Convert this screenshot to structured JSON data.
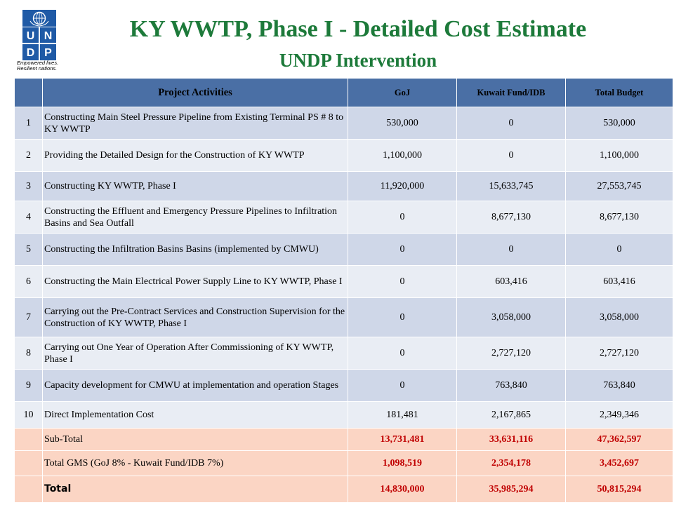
{
  "header": {
    "title": "KY WWTP, Phase I - Detailed Cost Estimate",
    "subtitle": "UNDP Intervention",
    "logo_letters": [
      "U",
      "N",
      "D",
      "P"
    ],
    "tagline_line1": "Empowered lives.",
    "tagline_line2": "Resilient nations."
  },
  "colors": {
    "title_green": "#1d7a3a",
    "header_blue": "#4a6fa5",
    "row_dark": "#cfd7e8",
    "row_light": "#e9edf4",
    "summary_bg": "#fbd5c4",
    "summary_text": "#c00000",
    "logo_blue": "#1f5aa6"
  },
  "table": {
    "columns": [
      "Project Activities",
      "GoJ",
      "Kuwait Fund/IDB",
      "Total Budget"
    ],
    "rows": [
      {
        "no": "1",
        "activity": "Constructing Main Steel Pressure Pipeline from Existing Terminal PS # 8 to KY WWTP",
        "goj": "530,000",
        "kuwait": "0",
        "total": "530,000"
      },
      {
        "no": "2",
        "activity": "Providing the Detailed Design for the Construction of KY WWTP",
        "goj": "1,100,000",
        "kuwait": "0",
        "total": "1,100,000"
      },
      {
        "no": "3",
        "activity": "Constructing KY WWTP, Phase I",
        "goj": "11,920,000",
        "kuwait": "15,633,745",
        "total": "27,553,745"
      },
      {
        "no": "4",
        "activity": "Constructing the Effluent and Emergency Pressure Pipelines to Infiltration Basins and Sea Outfall",
        "goj": "0",
        "kuwait": "8,677,130",
        "total": "8,677,130"
      },
      {
        "no": "5",
        "activity": "Constructing the Infiltration Basins Basins (implemented by CMWU)",
        "goj": "0",
        "kuwait": "0",
        "total": "0"
      },
      {
        "no": "6",
        "activity": "Constructing the Main Electrical Power Supply Line to KY WWTP, Phase I",
        "goj": "0",
        "kuwait": "603,416",
        "total": "603,416"
      },
      {
        "no": "7",
        "activity": "Carrying out the Pre-Contract Services and Construction Supervision for the Construction of KY WWTP, Phase I",
        "goj": "0",
        "kuwait": "3,058,000",
        "total": "3,058,000"
      },
      {
        "no": "8",
        "activity": "Carrying out One Year of Operation After Commissioning of KY WWTP, Phase I",
        "goj": "0",
        "kuwait": "2,727,120",
        "total": "2,727,120"
      },
      {
        "no": "9",
        "activity": "Capacity development for CMWU at implementation and operation Stages",
        "goj": "0",
        "kuwait": "763,840",
        "total": "763,840"
      },
      {
        "no": "10",
        "activity": "Direct Implementation Cost",
        "goj": "181,481",
        "kuwait": "2,167,865",
        "total": "2,349,346"
      }
    ],
    "subtotal": {
      "label": "Sub-Total",
      "goj": "13,731,481",
      "kuwait": "33,631,116",
      "total": "47,362,597"
    },
    "gms": {
      "label": "Total GMS  (GoJ 8% - Kuwait Fund/IDB 7%)",
      "goj": "1,098,519",
      "kuwait": "2,354,178",
      "total": "3,452,697"
    },
    "grand_total": {
      "label": "Total",
      "goj": "14,830,000",
      "kuwait": "35,985,294",
      "total": "50,815,294"
    }
  }
}
